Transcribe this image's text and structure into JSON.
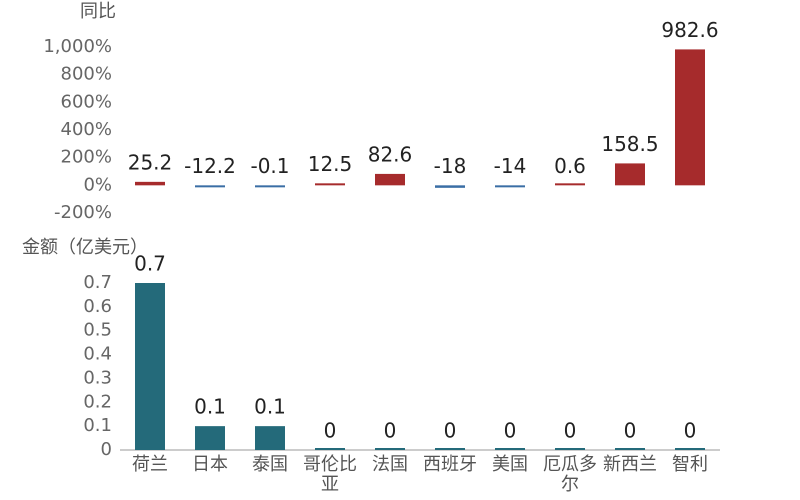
{
  "chart_data": [
    {
      "type": "bar",
      "y_label": "同比",
      "values": [
        25.2,
        -12.2,
        -0.1,
        12.5,
        82.6,
        -18,
        -14,
        0.6,
        158.5,
        982.6
      ],
      "positive_color": "#a62b2c",
      "negative_color": "#3a6ea5",
      "ylim": [
        -200,
        1000
      ],
      "yticks": [
        {
          "value": -200,
          "label": "-200%"
        },
        {
          "value": 0,
          "label": "0%"
        },
        {
          "value": 200,
          "label": "200%"
        },
        {
          "value": 400,
          "label": "400%"
        },
        {
          "value": 600,
          "label": "600%"
        },
        {
          "value": 800,
          "label": "800%"
        },
        {
          "value": 1000,
          "label": "1,000%"
        }
      ]
    },
    {
      "type": "bar",
      "y_label": "金额（亿美元）",
      "categories": [
        "荷兰",
        "日本",
        "泰国",
        "哥伦比亚",
        "法国",
        "西班牙",
        "美国",
        "厄瓜多尔",
        "新西兰",
        "智利"
      ],
      "values": [
        0.7,
        0.1,
        0.1,
        0,
        0,
        0,
        0,
        0,
        0,
        0
      ],
      "color": "#246a7a",
      "ylim": [
        0,
        0.7
      ],
      "yticks": [
        0,
        0.1,
        0.2,
        0.3,
        0.4,
        0.5,
        0.6,
        0.7
      ]
    }
  ]
}
